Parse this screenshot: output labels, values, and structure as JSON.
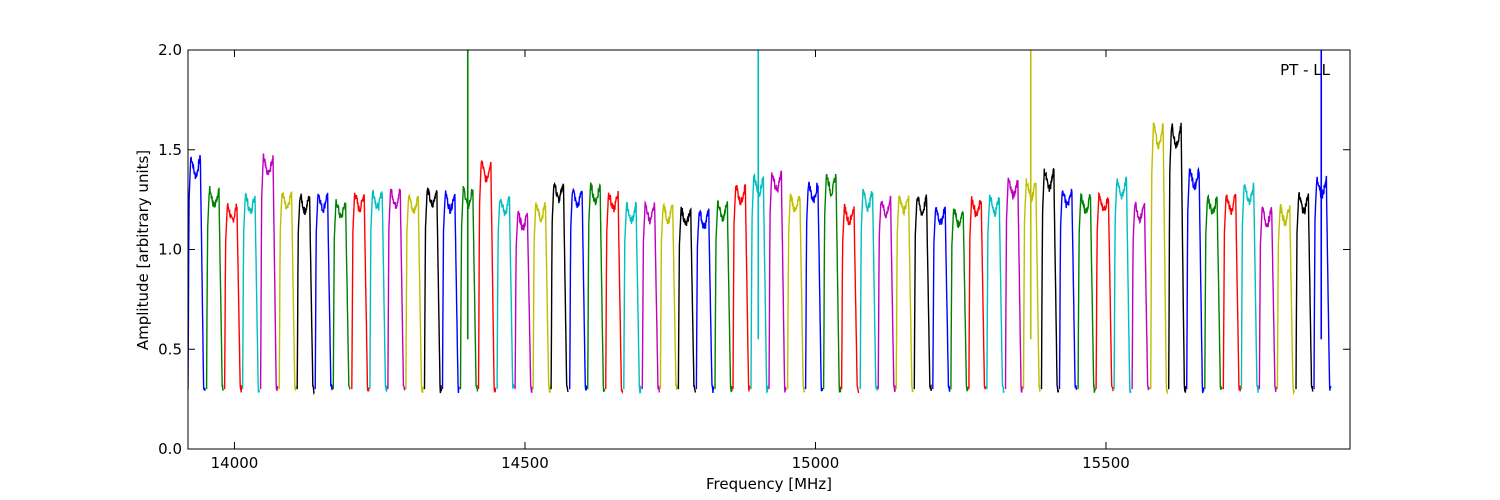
{
  "chart_data": {
    "type": "line",
    "title": "",
    "xlabel": "Frequency [MHz]",
    "ylabel": "Amplitude [arbitrary units]",
    "annotation": "PT - LL",
    "xlim": [
      13920,
      15920
    ],
    "ylim": [
      0.0,
      2.0
    ],
    "x_ticks": [
      14000,
      14500,
      15000,
      15500
    ],
    "x_tick_labels": [
      "14000",
      "14500",
      "15000",
      "15500"
    ],
    "y_ticks": [
      0.0,
      0.5,
      1.0,
      1.5,
      2.0
    ],
    "y_tick_labels": [
      "0.0",
      "0.5",
      "1.0",
      "1.5",
      "2.0"
    ],
    "colors": [
      "#0000ff",
      "#008000",
      "#ff0000",
      "#00bfbf",
      "#bf00bf",
      "#bfbf00",
      "#000000"
    ],
    "channel_width_mhz": 31.25,
    "channels": [
      {
        "start": 13920,
        "peak": 1.46,
        "color": "#0000ff"
      },
      {
        "start": 13952,
        "peak": 1.3,
        "color": "#008000"
      },
      {
        "start": 13983,
        "peak": 1.22,
        "color": "#ff0000"
      },
      {
        "start": 14014,
        "peak": 1.27,
        "color": "#00bfbf"
      },
      {
        "start": 14045,
        "peak": 1.47,
        "color": "#bf00bf"
      },
      {
        "start": 14077,
        "peak": 1.28,
        "color": "#bfbf00"
      },
      {
        "start": 14108,
        "peak": 1.27,
        "color": "#000000"
      },
      {
        "start": 14139,
        "peak": 1.28,
        "color": "#0000ff"
      },
      {
        "start": 14170,
        "peak": 1.24,
        "color": "#008000"
      },
      {
        "start": 14202,
        "peak": 1.28,
        "color": "#ff0000"
      },
      {
        "start": 14233,
        "peak": 1.29,
        "color": "#00bfbf"
      },
      {
        "start": 14264,
        "peak": 1.3,
        "color": "#bf00bf"
      },
      {
        "start": 14295,
        "peak": 1.27,
        "color": "#bfbf00"
      },
      {
        "start": 14327,
        "peak": 1.3,
        "color": "#000000"
      },
      {
        "start": 14358,
        "peak": 1.28,
        "color": "#0000ff"
      },
      {
        "start": 14389,
        "peak": 1.3,
        "color": "#008000",
        "spike": 2.0
      },
      {
        "start": 14420,
        "peak": 1.44,
        "color": "#ff0000"
      },
      {
        "start": 14452,
        "peak": 1.26,
        "color": "#00bfbf"
      },
      {
        "start": 14483,
        "peak": 1.18,
        "color": "#bf00bf"
      },
      {
        "start": 14514,
        "peak": 1.23,
        "color": "#bfbf00"
      },
      {
        "start": 14545,
        "peak": 1.33,
        "color": "#000000"
      },
      {
        "start": 14577,
        "peak": 1.3,
        "color": "#0000ff"
      },
      {
        "start": 14608,
        "peak": 1.32,
        "color": "#008000"
      },
      {
        "start": 14639,
        "peak": 1.28,
        "color": "#ff0000"
      },
      {
        "start": 14670,
        "peak": 1.22,
        "color": "#00bfbf"
      },
      {
        "start": 14702,
        "peak": 1.22,
        "color": "#bf00bf"
      },
      {
        "start": 14733,
        "peak": 1.22,
        "color": "#bfbf00"
      },
      {
        "start": 14764,
        "peak": 1.2,
        "color": "#000000"
      },
      {
        "start": 14795,
        "peak": 1.19,
        "color": "#0000ff"
      },
      {
        "start": 14827,
        "peak": 1.23,
        "color": "#008000"
      },
      {
        "start": 14858,
        "peak": 1.32,
        "color": "#ff0000"
      },
      {
        "start": 14889,
        "peak": 1.36,
        "color": "#00bfbf",
        "spike": 2.0
      },
      {
        "start": 14920,
        "peak": 1.38,
        "color": "#bf00bf"
      },
      {
        "start": 14952,
        "peak": 1.27,
        "color": "#bfbf00"
      },
      {
        "start": 14983,
        "peak": 1.33,
        "color": "#0000ff"
      },
      {
        "start": 15014,
        "peak": 1.37,
        "color": "#008000"
      },
      {
        "start": 15045,
        "peak": 1.21,
        "color": "#ff0000"
      },
      {
        "start": 15077,
        "peak": 1.29,
        "color": "#00bfbf"
      },
      {
        "start": 15108,
        "peak": 1.25,
        "color": "#bf00bf"
      },
      {
        "start": 15139,
        "peak": 1.27,
        "color": "#bfbf00"
      },
      {
        "start": 15170,
        "peak": 1.26,
        "color": "#000000"
      },
      {
        "start": 15202,
        "peak": 1.21,
        "color": "#0000ff"
      },
      {
        "start": 15233,
        "peak": 1.2,
        "color": "#008000"
      },
      {
        "start": 15264,
        "peak": 1.25,
        "color": "#ff0000"
      },
      {
        "start": 15295,
        "peak": 1.26,
        "color": "#00bfbf"
      },
      {
        "start": 15327,
        "peak": 1.35,
        "color": "#bf00bf"
      },
      {
        "start": 15358,
        "peak": 1.34,
        "color": "#bfbf00",
        "spike": 2.0
      },
      {
        "start": 15389,
        "peak": 1.39,
        "color": "#000000"
      },
      {
        "start": 15420,
        "peak": 1.3,
        "color": "#0000ff"
      },
      {
        "start": 15452,
        "peak": 1.27,
        "color": "#008000"
      },
      {
        "start": 15483,
        "peak": 1.27,
        "color": "#ff0000"
      },
      {
        "start": 15514,
        "peak": 1.35,
        "color": "#00bfbf"
      },
      {
        "start": 15545,
        "peak": 1.23,
        "color": "#bf00bf"
      },
      {
        "start": 15577,
        "peak": 1.62,
        "color": "#bfbf00"
      },
      {
        "start": 15608,
        "peak": 1.62,
        "color": "#000000"
      },
      {
        "start": 15639,
        "peak": 1.4,
        "color": "#0000ff"
      },
      {
        "start": 15670,
        "peak": 1.26,
        "color": "#008000"
      },
      {
        "start": 15702,
        "peak": 1.27,
        "color": "#ff0000"
      },
      {
        "start": 15733,
        "peak": 1.32,
        "color": "#00bfbf"
      },
      {
        "start": 15764,
        "peak": 1.2,
        "color": "#bf00bf"
      },
      {
        "start": 15795,
        "peak": 1.21,
        "color": "#bfbf00"
      },
      {
        "start": 15827,
        "peak": 1.27,
        "color": "#000000"
      },
      {
        "start": 15858,
        "peak": 1.35,
        "color": "#0000ff",
        "spike": 2.0
      }
    ]
  }
}
